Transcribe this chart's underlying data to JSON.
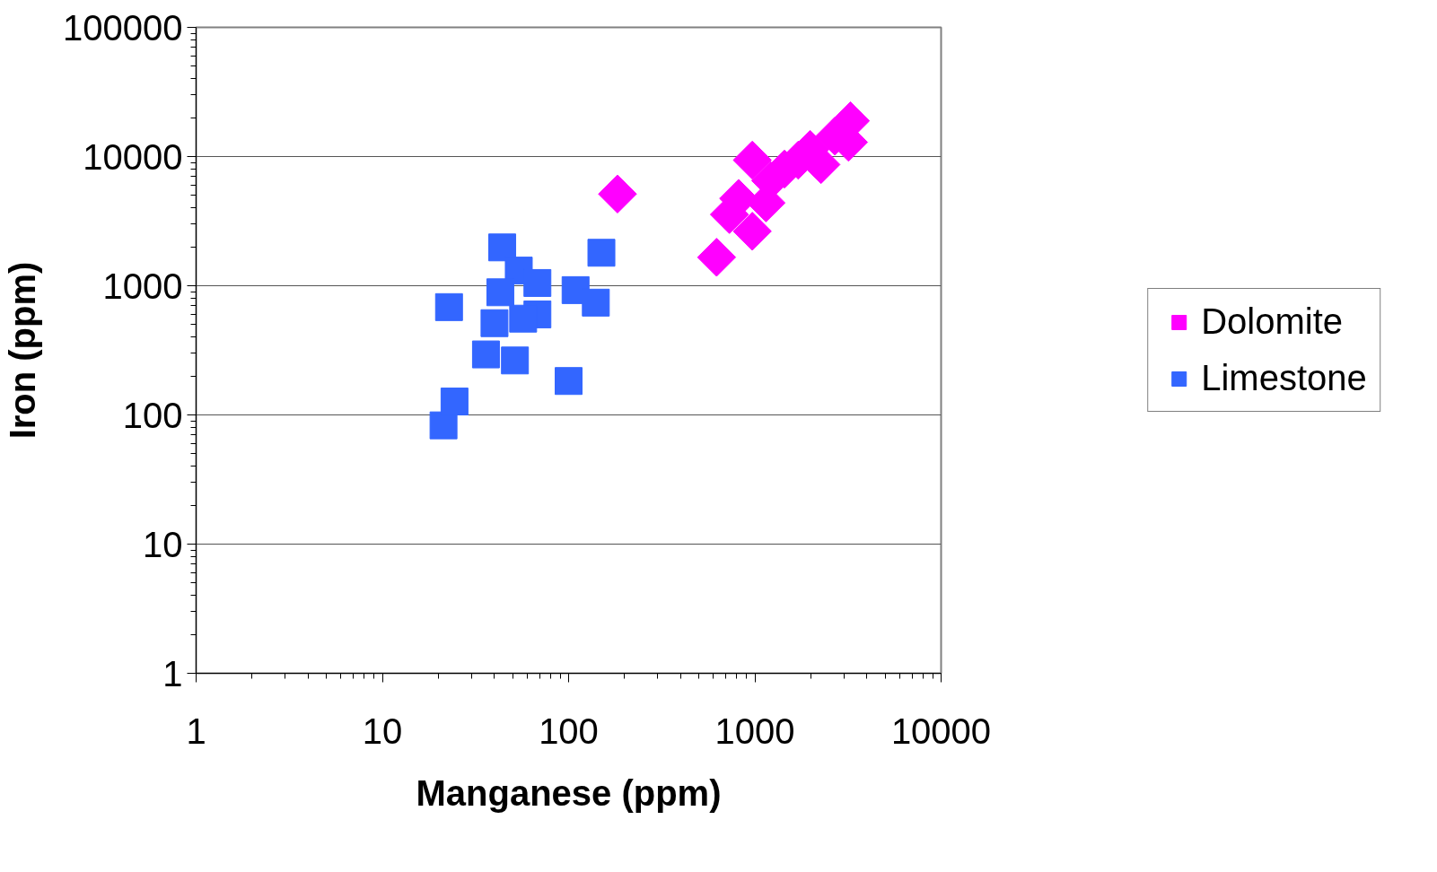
{
  "chart_data": {
    "type": "scatter",
    "xlabel": "Manganese (ppm)",
    "ylabel": "Iron (ppm)",
    "log": "xy",
    "xlim": [
      1,
      10000
    ],
    "ylim": [
      1,
      100000
    ],
    "xticks": [
      1,
      10,
      100,
      1000,
      10000
    ],
    "yticks": [
      1,
      10,
      100,
      1000,
      10000,
      100000
    ],
    "grid": "y",
    "legend": "right",
    "series": [
      {
        "name": "Dolomite",
        "color": "#ff00ff",
        "marker": "diamond",
        "x": [
          183,
          623,
          969,
          969,
          730,
          818,
          1148,
          1216,
          1442,
          1710,
          2265,
          3260,
          3185,
          2690,
          1980
        ],
        "values": [
          5130,
          1660,
          9380,
          2640,
          3560,
          4740,
          4380,
          6510,
          8000,
          9380,
          8670,
          18900,
          12900,
          14400,
          11350
        ]
      },
      {
        "name": "Limestone",
        "color": "#3366ff",
        "marker": "square",
        "x": [
          21.3,
          24.4,
          22.8,
          44,
          150,
          100,
          109,
          140,
          51.5,
          54,
          68,
          68,
          36,
          57,
          40,
          43
        ],
        "values": [
          83,
          127,
          683,
          1980,
          1800,
          183,
          925,
          740,
          264,
          1310,
          1050,
          600,
          294,
          556,
          513,
          890
        ]
      }
    ]
  }
}
